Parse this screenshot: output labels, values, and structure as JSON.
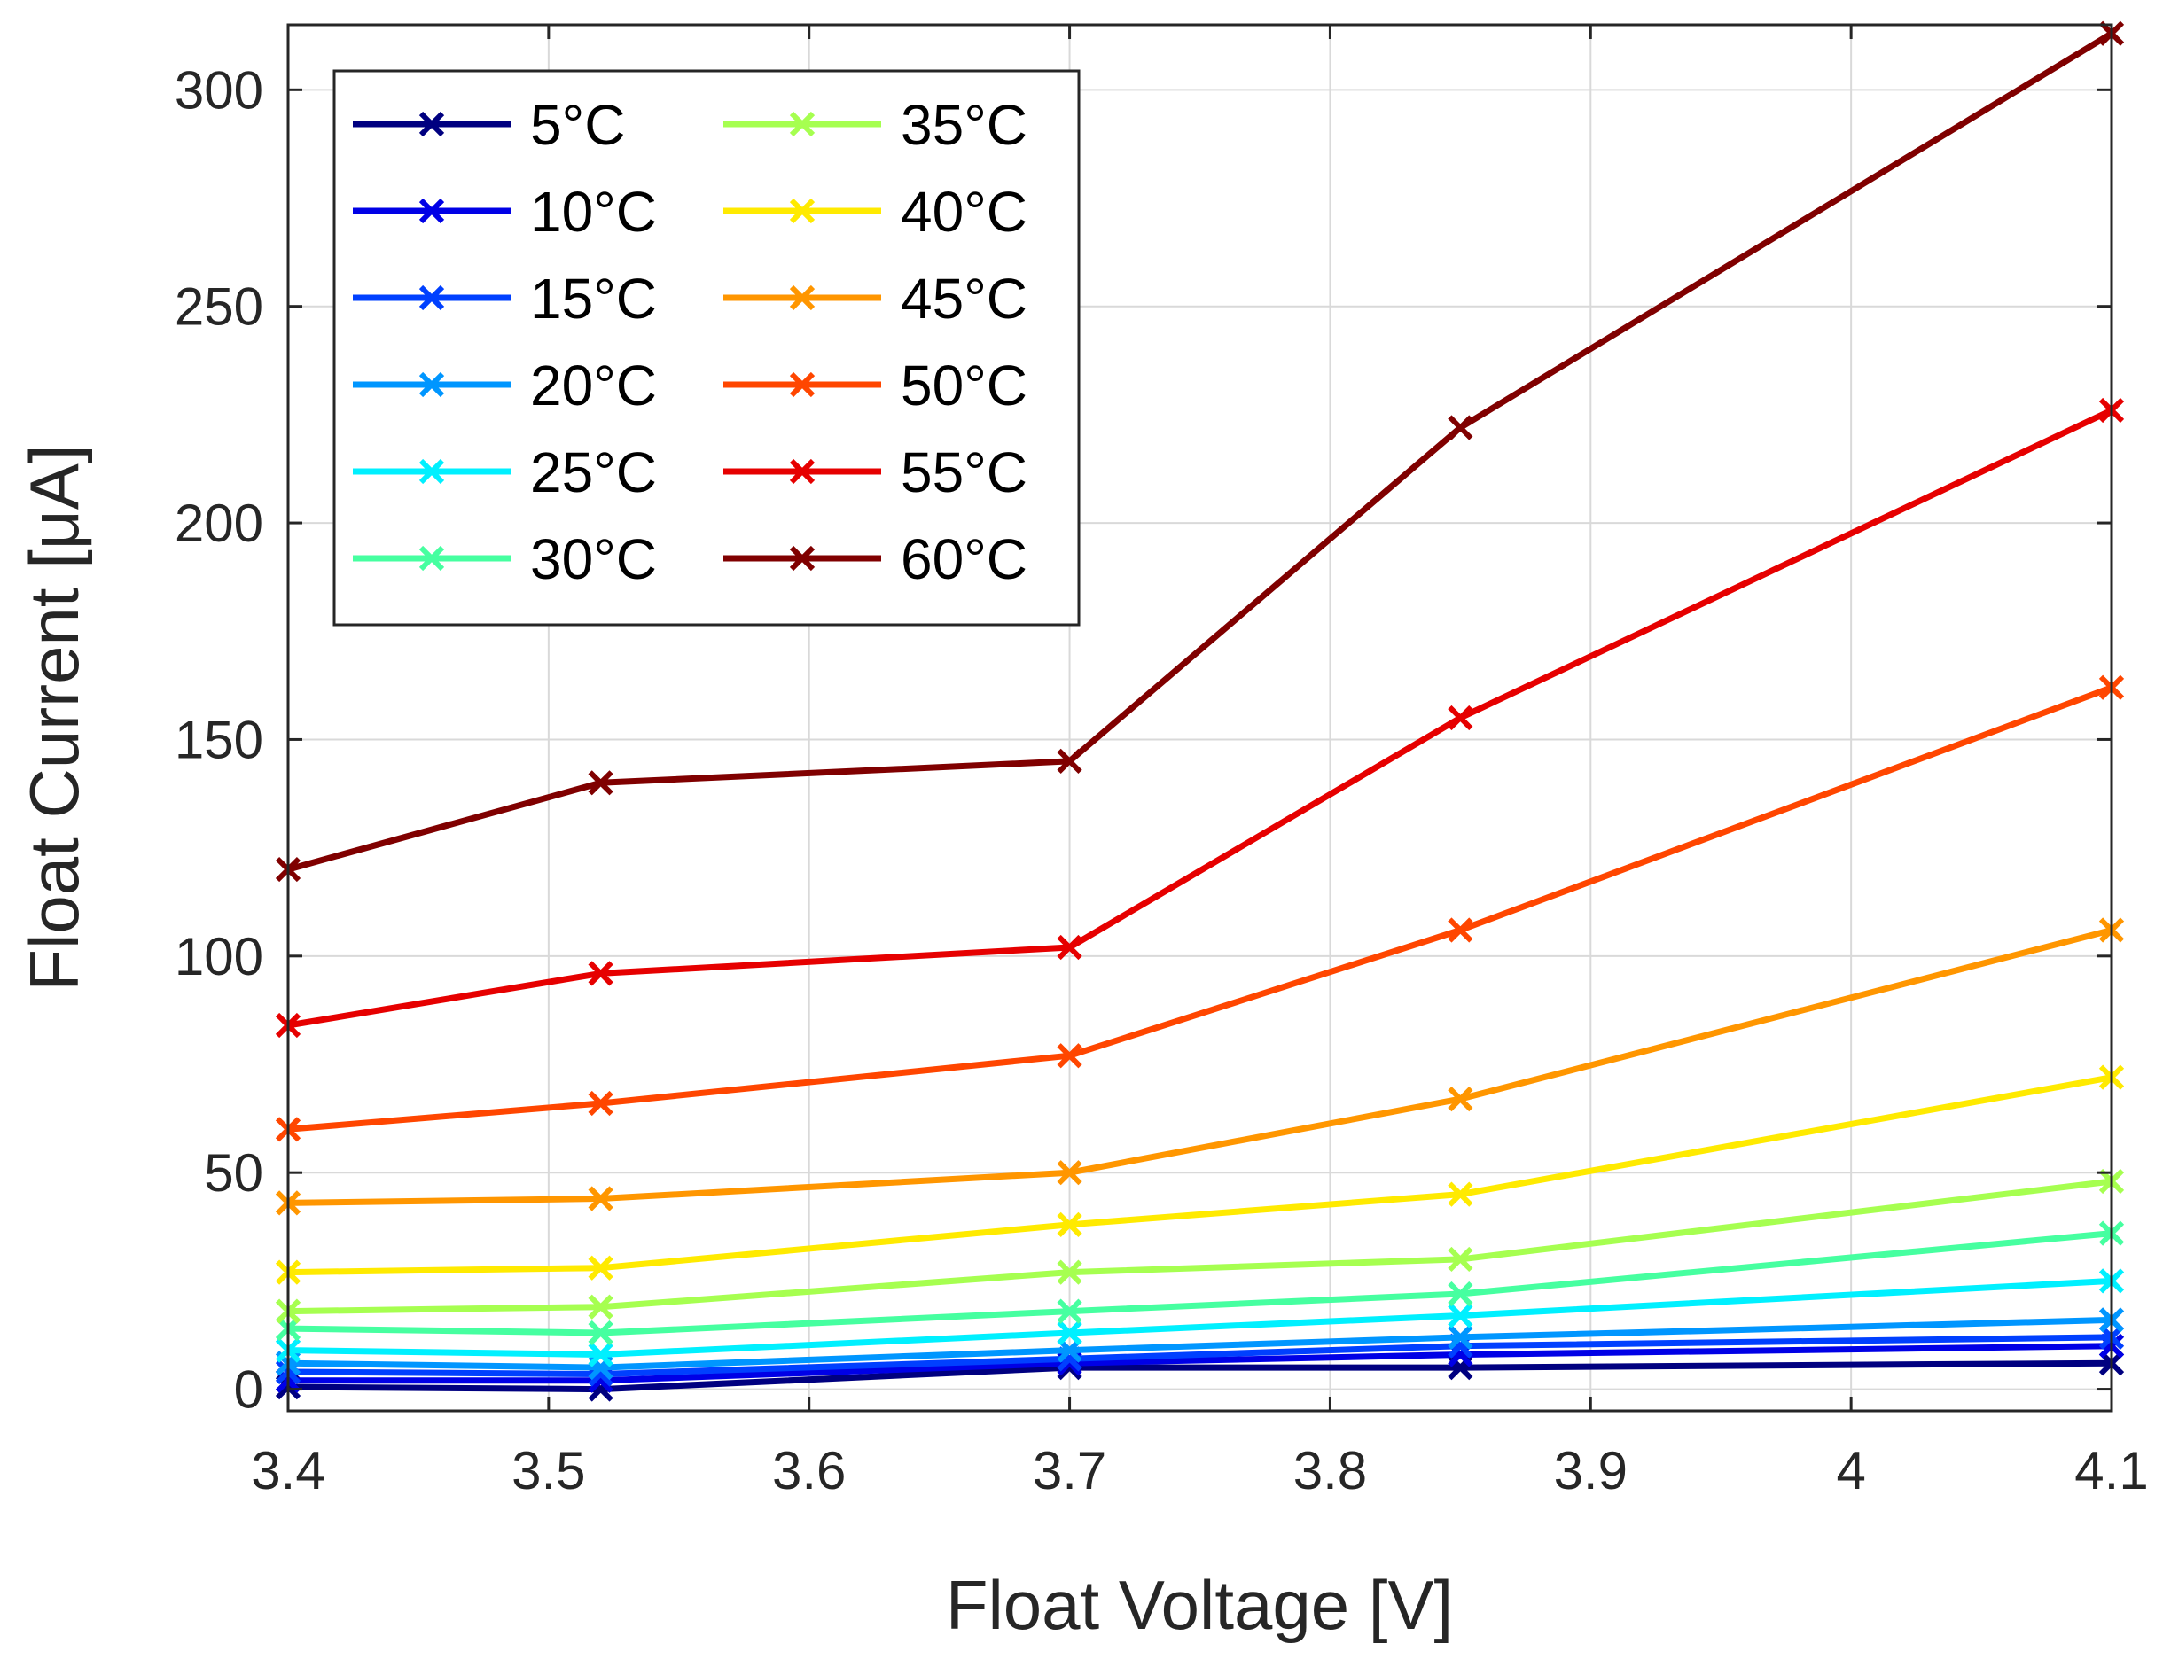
{
  "chart_data": {
    "type": "line",
    "title": "",
    "xlabel": "Float Voltage [V]",
    "ylabel": "Float Current [μA]",
    "xlim": [
      3.4,
      4.1
    ],
    "ylim": [
      -5,
      315
    ],
    "xticks": [
      3.4,
      3.5,
      3.6,
      3.7,
      3.8,
      3.9,
      4.0,
      4.1
    ],
    "xtick_labels": [
      "3.4",
      "3.5",
      "3.6",
      "3.7",
      "3.8",
      "3.9",
      "4",
      "4.1"
    ],
    "yticks": [
      0,
      50,
      100,
      150,
      200,
      250,
      300
    ],
    "ytick_labels": [
      "0",
      "50",
      "100",
      "150",
      "200",
      "250",
      "300"
    ],
    "grid": true,
    "legend_position": "top-left",
    "x": [
      3.4,
      3.52,
      3.7,
      3.85,
      4.1
    ],
    "series": [
      {
        "name": "5°C",
        "color": "#000080",
        "values": [
          0.5,
          0,
          5,
          5,
          6
        ]
      },
      {
        "name": "10°C",
        "color": "#0000e6",
        "values": [
          2,
          2,
          6,
          8,
          10
        ]
      },
      {
        "name": "15°C",
        "color": "#0040ff",
        "values": [
          4,
          3.5,
          7,
          10,
          12
        ]
      },
      {
        "name": "20°C",
        "color": "#0096ff",
        "values": [
          6,
          5,
          9,
          12,
          16
        ]
      },
      {
        "name": "25°C",
        "color": "#00f0ff",
        "values": [
          9,
          8,
          13,
          17,
          25
        ]
      },
      {
        "name": "30°C",
        "color": "#46ffa0",
        "values": [
          14,
          13,
          18,
          22,
          36
        ]
      },
      {
        "name": "35°C",
        "color": "#a6ff50",
        "values": [
          18,
          19,
          27,
          30,
          48
        ]
      },
      {
        "name": "40°C",
        "color": "#ffea00",
        "values": [
          27,
          28,
          38,
          45,
          72
        ]
      },
      {
        "name": "45°C",
        "color": "#ff9600",
        "values": [
          43,
          44,
          50,
          67,
          106
        ]
      },
      {
        "name": "50°C",
        "color": "#ff4600",
        "values": [
          60,
          66,
          77,
          106,
          162
        ]
      },
      {
        "name": "55°C",
        "color": "#e60000",
        "values": [
          84,
          96,
          102,
          155,
          226
        ]
      },
      {
        "name": "60°C",
        "color": "#800000",
        "values": [
          120,
          140,
          145,
          222,
          313
        ]
      }
    ]
  }
}
